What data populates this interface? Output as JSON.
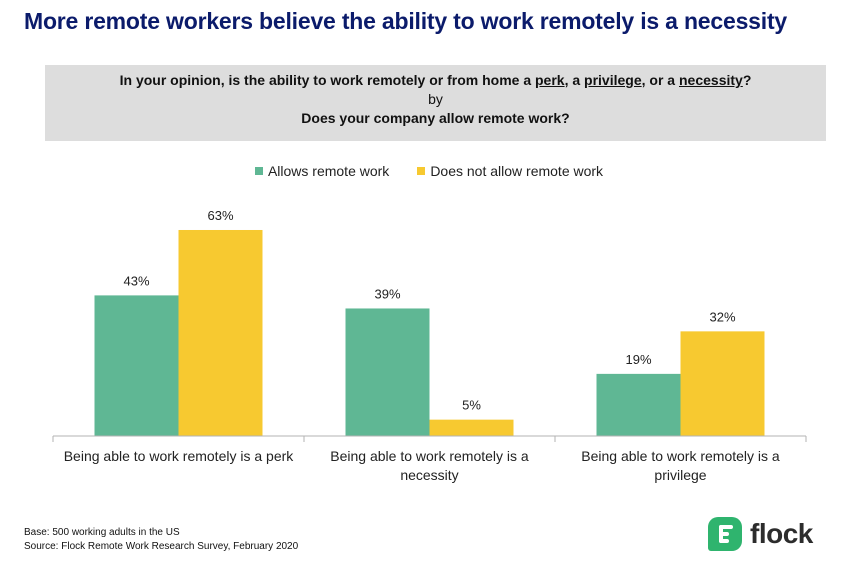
{
  "title": "More remote workers believe the ability to work remotely is a necessity",
  "question": {
    "line1_prefix": "In your opinion, is the ability to work remotely or from home a ",
    "perk": "perk",
    "sep1": ", a ",
    "privilege": "privilege",
    "sep2": ", or a ",
    "necessity": "necessity",
    "line1_suffix": "?",
    "by": "by",
    "line2": "Does your company allow remote work?"
  },
  "colors": {
    "allows": "#5fb794",
    "not_allows": "#f7c930",
    "axis": "#b3b3b3"
  },
  "chart_data": {
    "type": "bar",
    "categories": [
      "Being able to work remotely is a perk",
      "Being able to work remotely is a necessity",
      "Being able to work remotely is a privilege"
    ],
    "category_lines": [
      [
        "Being able to work remotely is a perk"
      ],
      [
        "Being able to work remotely is a",
        "necessity"
      ],
      [
        "Being able to work remotely is a",
        "privilege"
      ]
    ],
    "series": [
      {
        "name": "Allows remote work",
        "values": [
          43,
          39,
          19
        ],
        "labels": [
          "43%",
          "39%",
          "19%"
        ]
      },
      {
        "name": "Does not allow remote work",
        "values": [
          63,
          5,
          32
        ],
        "labels": [
          "63%",
          "5%",
          "32%"
        ]
      }
    ],
    "ylim": [
      0,
      70
    ],
    "grid": false,
    "legend": "top-center"
  },
  "footnotes": {
    "base": "Base: 500 working adults in the US",
    "source": "Source: Flock Remote Work Research Survey, February 2020"
  },
  "logo_text": "flock"
}
